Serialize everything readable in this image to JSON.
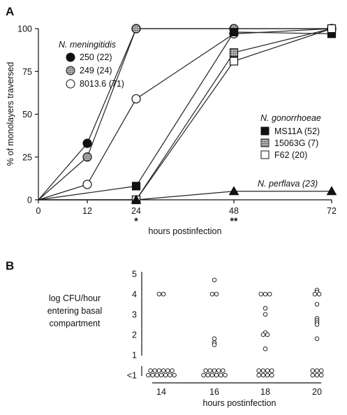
{
  "chart_data": [
    {
      "panel": "A",
      "type": "line",
      "xlabel": "hours  postinfection",
      "ylabel": "% of monolayers traversed",
      "x_ticks": [
        0,
        12,
        24,
        48,
        72
      ],
      "x_tick_labels": [
        "0",
        "12",
        "24",
        "48",
        "72"
      ],
      "y_ticks": [
        0,
        25,
        50,
        75,
        100
      ],
      "y_tick_labels": [
        "0",
        "25",
        "50",
        "75",
        "100"
      ],
      "ylim": [
        0,
        100
      ],
      "legend_groups": [
        {
          "title": "N. meningitidis",
          "series": [
            "250 (22)",
            "249 (24)",
            "8013.6 (71)"
          ]
        },
        {
          "title": "N. gonorrhoeae",
          "series": [
            "MS11A (52)",
            "15063G (7)",
            "F62 (20)"
          ]
        }
      ],
      "series": [
        {
          "name": "250 (22)",
          "marker": "circle-filled",
          "x": [
            0,
            12,
            24,
            48,
            72
          ],
          "y": [
            0,
            33,
            100,
            100,
            100
          ]
        },
        {
          "name": "249 (24)",
          "marker": "circle-hatched",
          "x": [
            0,
            12,
            24,
            48,
            72
          ],
          "y": [
            0,
            25,
            100,
            100,
            100
          ]
        },
        {
          "name": "8013.6 (71)",
          "marker": "circle-open",
          "x": [
            0,
            12,
            24,
            48,
            72
          ],
          "y": [
            0,
            9,
            59,
            97,
            100
          ]
        },
        {
          "name": "MS11A (52)",
          "marker": "square-filled",
          "x": [
            0,
            24,
            48,
            72
          ],
          "y": [
            0,
            8,
            98,
            97
          ]
        },
        {
          "name": "15063G (7)",
          "marker": "square-hatched",
          "x": [
            0,
            24,
            48,
            72
          ],
          "y": [
            0,
            0,
            86,
            100
          ]
        },
        {
          "name": "F62 (20)",
          "marker": "square-open",
          "x": [
            0,
            24,
            48,
            72
          ],
          "y": [
            0,
            0,
            81,
            100
          ]
        },
        {
          "name": "N. perflava (23)",
          "marker": "triangle-filled",
          "x": [
            0,
            24,
            48,
            72
          ],
          "y": [
            0,
            0,
            5,
            5
          ]
        }
      ],
      "annotations": [
        {
          "text": "*",
          "at_x": 24
        },
        {
          "text": "**",
          "at_x": 48
        }
      ]
    },
    {
      "panel": "B",
      "type": "scatter",
      "xlabel": "hours postinfection",
      "ylabel_lines": [
        "log CFU/hour",
        "entering basal",
        "compartment"
      ],
      "categories": [
        "14",
        "16",
        "18",
        "20"
      ],
      "y_ticks": [
        0,
        1,
        2,
        3,
        4,
        5
      ],
      "y_tick_labels": [
        "<1",
        "1",
        "2",
        "3",
        "4",
        "5"
      ],
      "ylim": [
        0,
        5
      ],
      "note": "value 0 denotes <1",
      "columns": [
        {
          "category": "14",
          "values": [
            4,
            4,
            0,
            0,
            0,
            0,
            0,
            0,
            0,
            0,
            0,
            0,
            0,
            0,
            0
          ]
        },
        {
          "category": "16",
          "values": [
            4.7,
            4,
            4,
            1.8,
            1.6,
            1.5,
            0,
            0,
            0,
            0,
            0,
            0,
            0,
            0,
            0,
            0,
            0
          ]
        },
        {
          "category": "18",
          "values": [
            4,
            4,
            4,
            3.3,
            3,
            2.1,
            2,
            2,
            1.3,
            0,
            0,
            0,
            0,
            0,
            0,
            0,
            0
          ]
        },
        {
          "category": "20",
          "values": [
            4.2,
            4.1,
            4,
            4,
            3.5,
            2.8,
            2.7,
            2.6,
            2.5,
            1.8,
            0,
            0,
            0,
            0,
            0,
            0
          ]
        }
      ]
    }
  ],
  "labels": {
    "panel_a": "A",
    "panel_b": "B",
    "n_meningitidis": "N. meningitidis",
    "n_gonorrhoeae": "N. gonorrhoeae",
    "n_perflava": "N. perflava (23)"
  }
}
